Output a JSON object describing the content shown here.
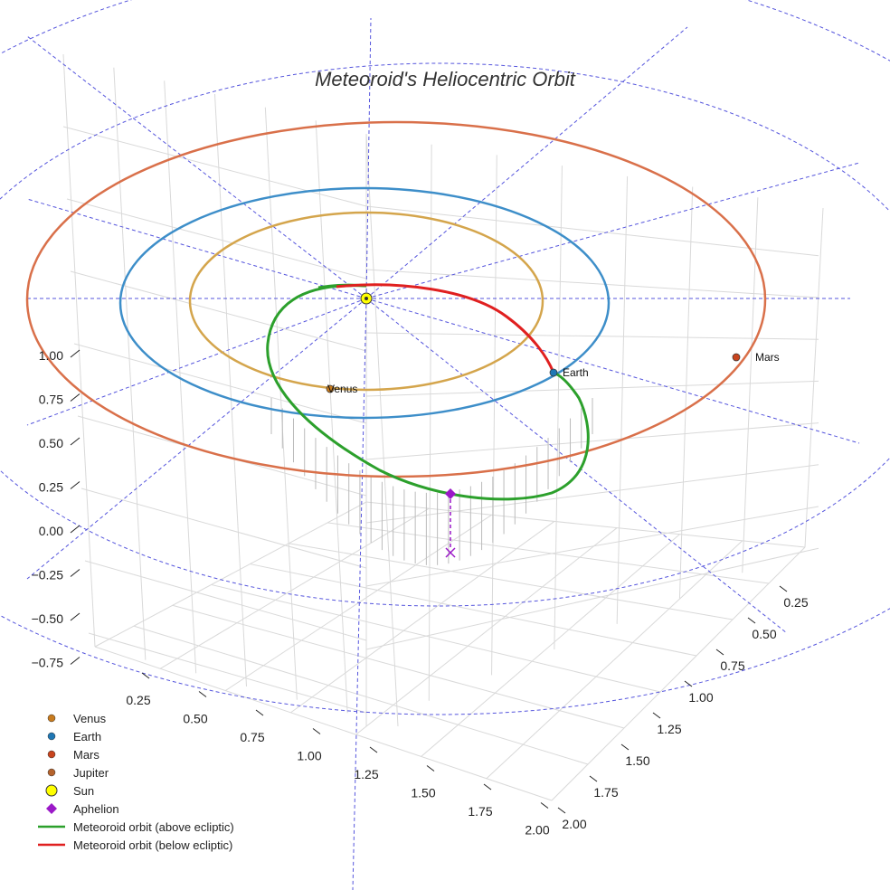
{
  "chart_data": {
    "type": "scatter",
    "title": "Meteoroid's Heliocentric Orbit",
    "projection": "3d",
    "grid": true,
    "legend_position": "bottom-left",
    "z_ticks": [
      "1.00",
      "0.75",
      "0.50",
      "0.25",
      "0.00",
      "−0.25",
      "−0.50",
      "−0.75"
    ],
    "x_ticks": [
      "0.25",
      "0.50",
      "0.75",
      "1.00",
      "1.25",
      "1.50",
      "1.75",
      "2.00"
    ],
    "y_ticks": [
      "0.25",
      "0.50",
      "0.75",
      "1.00",
      "1.25",
      "1.50",
      "1.75",
      "2.00"
    ],
    "orbits": [
      {
        "name": "Venus orbit",
        "semi_major_au": 0.72,
        "color": "#d4a54c"
      },
      {
        "name": "Earth orbit",
        "semi_major_au": 1.0,
        "color": "#3d8ec9"
      },
      {
        "name": "Mars orbit",
        "semi_major_au": 1.52,
        "color": "#d9704a"
      }
    ],
    "planets": [
      {
        "name": "Venus",
        "label": "Venus",
        "color": "#c87b1e"
      },
      {
        "name": "Earth",
        "label": "Earth",
        "color": "#1f77b4"
      },
      {
        "name": "Mars",
        "label": "Mars",
        "color": "#c8441e"
      }
    ],
    "meteoroid": {
      "above_color": "#2ca02c",
      "below_color": "#e02020",
      "aphelion_color": "#9b19c8"
    },
    "colors": {
      "sun": "#ffff00",
      "grid": "#d9d9d9",
      "reference_lines": "#5555dd"
    },
    "legend": [
      {
        "label": "Venus",
        "symbol": "circle",
        "color": "#c87b1e"
      },
      {
        "label": "Earth",
        "symbol": "circle",
        "color": "#1f77b4"
      },
      {
        "label": "Mars",
        "symbol": "circle",
        "color": "#c8441e"
      },
      {
        "label": "Jupiter",
        "symbol": "circle",
        "color": "#b5632c"
      },
      {
        "label": "Sun",
        "symbol": "sun",
        "color": "#ffff00"
      },
      {
        "label": "Aphelion",
        "symbol": "diamond",
        "color": "#9b19c8"
      },
      {
        "label": "Meteoroid orbit (above ecliptic)",
        "symbol": "line",
        "color": "#2ca02c"
      },
      {
        "label": "Meteoroid orbit (below ecliptic)",
        "symbol": "line",
        "color": "#e02020"
      }
    ]
  }
}
